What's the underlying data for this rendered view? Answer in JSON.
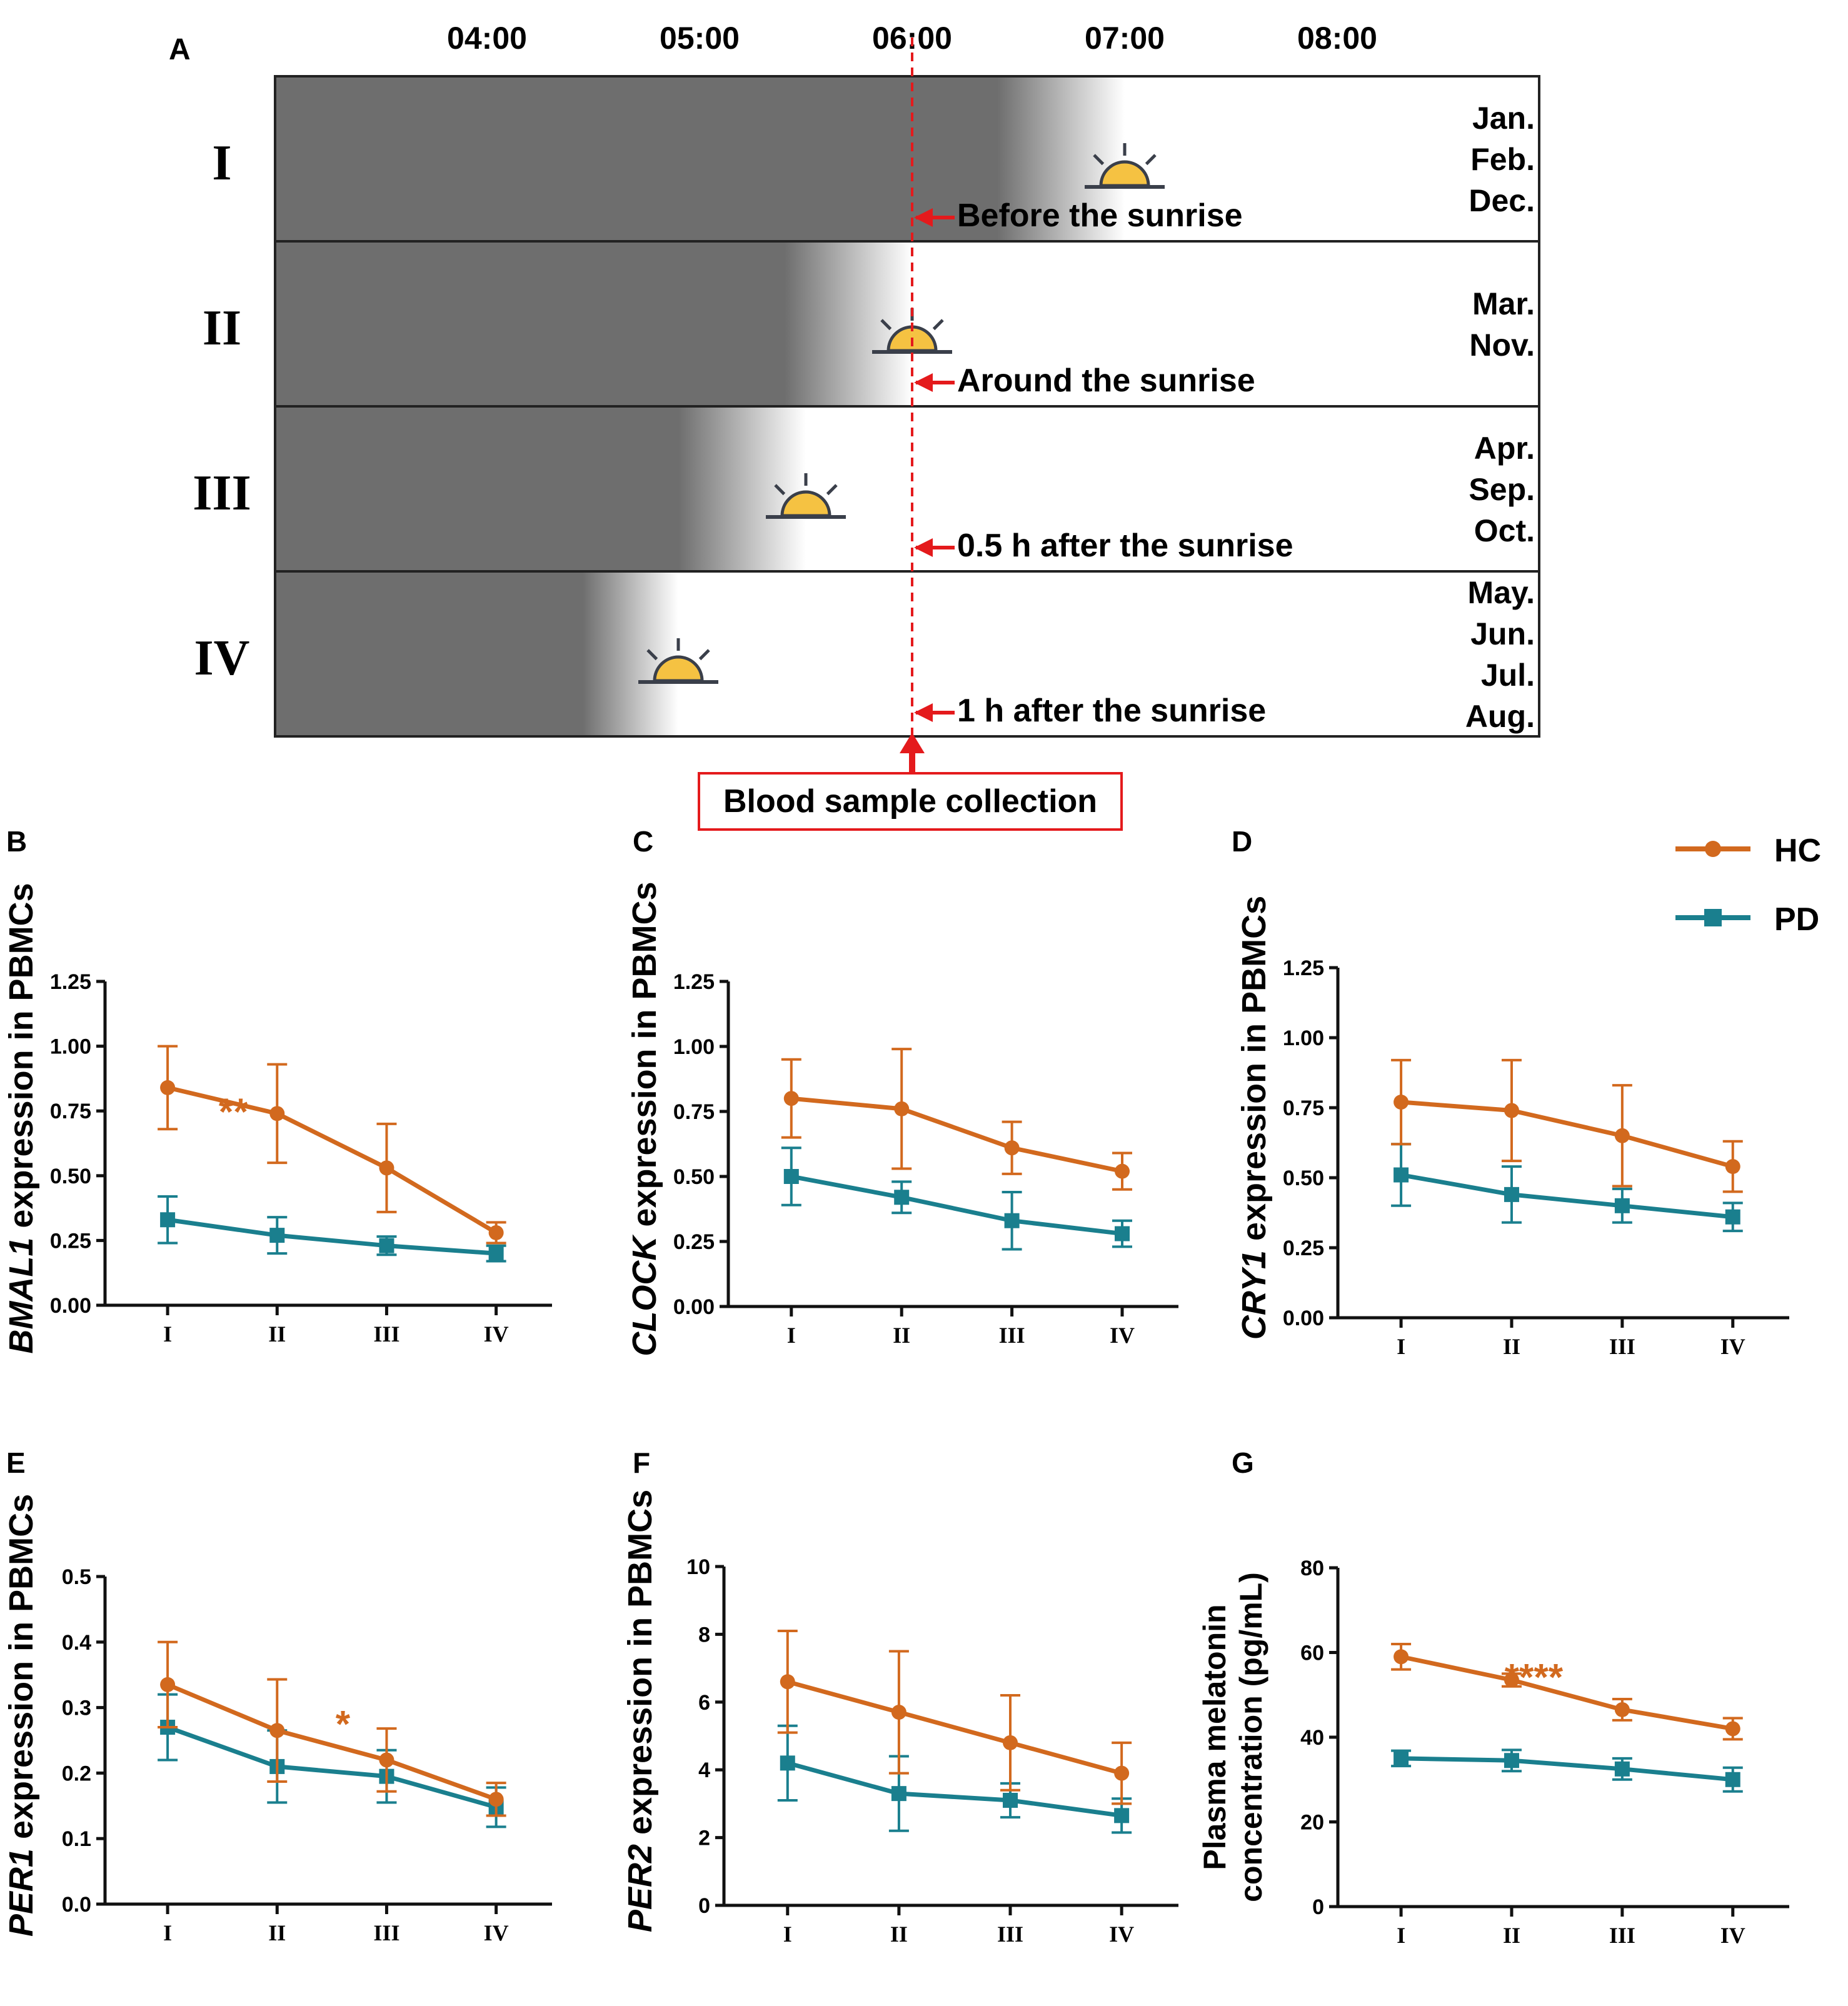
{
  "colors": {
    "hc": "#D2691E",
    "pd": "#1A7F8E",
    "night": "#6E6E6E",
    "accent_red": "#E41A1C",
    "sun_fill": "#F5C242",
    "sun_stroke": "#3A3F4A"
  },
  "panel_a": {
    "label": "A",
    "times": [
      "04:00",
      "05:00",
      "06:00",
      "07:00",
      "08:00"
    ],
    "rows": [
      {
        "roman": "I",
        "months": [
          "Jan.",
          "Feb.",
          "Dec."
        ],
        "note": "Before the sunrise",
        "dark_until_hour": 6.4,
        "sunrise_hour": 7.0
      },
      {
        "roman": "II",
        "months": [
          "Mar.",
          "Nov."
        ],
        "note": "Around the sunrise",
        "dark_until_hour": 5.4,
        "sunrise_hour": 6.0
      },
      {
        "roman": "III",
        "months": [
          "Apr.",
          "Sep.",
          "Oct."
        ],
        "note": "0.5 h after the sunrise",
        "dark_until_hour": 4.9,
        "sunrise_hour": 5.5
      },
      {
        "roman": "IV",
        "months": [
          "May.",
          "Jun.",
          "Jul.",
          "Aug."
        ],
        "note": "1 h after the sunrise",
        "dark_until_hour": 4.45,
        "sunrise_hour": 4.9
      }
    ],
    "collection_hour": 6.0,
    "collection_label": "Blood sample collection"
  },
  "legend": {
    "hc": "HC",
    "pd": "PD"
  },
  "chart_data": [
    {
      "panel": "B",
      "type": "line",
      "ylabel_italic": "BMAL1",
      "ylabel_rest": " expression in PBMCs",
      "categories": [
        "I",
        "II",
        "III",
        "IV"
      ],
      "ylim": [
        0,
        1.25
      ],
      "yticks": [
        "0.00",
        "0.25",
        "0.50",
        "0.75",
        "1.00",
        "1.25"
      ],
      "ytick_values": [
        0,
        0.25,
        0.5,
        0.75,
        1.0,
        1.25
      ],
      "series": [
        {
          "name": "HC",
          "values": [
            0.84,
            0.74,
            0.53,
            0.28
          ],
          "errors": [
            0.16,
            0.19,
            0.17,
            0.04
          ]
        },
        {
          "name": "PD",
          "values": [
            0.33,
            0.27,
            0.23,
            0.2
          ],
          "errors": [
            0.09,
            0.07,
            0.035,
            0.03
          ]
        }
      ],
      "annotation": {
        "text": "**",
        "category_pos": 1.6,
        "value": 0.76
      }
    },
    {
      "panel": "C",
      "type": "line",
      "ylabel_italic": "CLOCK",
      "ylabel_rest": " expression in PBMCs",
      "categories": [
        "I",
        "II",
        "III",
        "IV"
      ],
      "ylim": [
        0,
        1.25
      ],
      "yticks": [
        "0.00",
        "0.25",
        "0.50",
        "0.75",
        "1.00",
        "1.25"
      ],
      "ytick_values": [
        0,
        0.25,
        0.5,
        0.75,
        1.0,
        1.25
      ],
      "series": [
        {
          "name": "HC",
          "values": [
            0.8,
            0.76,
            0.61,
            0.52
          ],
          "errors": [
            0.15,
            0.23,
            0.1,
            0.07
          ]
        },
        {
          "name": "PD",
          "values": [
            0.5,
            0.42,
            0.33,
            0.28
          ],
          "errors": [
            0.11,
            0.06,
            0.11,
            0.05
          ]
        }
      ]
    },
    {
      "panel": "D",
      "type": "line",
      "ylabel_italic": "CRY1",
      "ylabel_rest": " expression in PBMCs",
      "categories": [
        "I",
        "II",
        "III",
        "IV"
      ],
      "ylim": [
        0,
        1.25
      ],
      "yticks": [
        "0.00",
        "0.25",
        "0.50",
        "0.75",
        "1.00",
        "1.25"
      ],
      "ytick_values": [
        0,
        0.25,
        0.5,
        0.75,
        1.0,
        1.25
      ],
      "series": [
        {
          "name": "HC",
          "values": [
            0.77,
            0.74,
            0.65,
            0.54
          ],
          "errors": [
            0.15,
            0.18,
            0.18,
            0.09
          ]
        },
        {
          "name": "PD",
          "values": [
            0.51,
            0.44,
            0.4,
            0.36
          ],
          "errors": [
            0.11,
            0.1,
            0.06,
            0.05
          ]
        }
      ]
    },
    {
      "panel": "E",
      "type": "line",
      "ylabel_italic": "PER1",
      "ylabel_rest": " expression in PBMCs",
      "categories": [
        "I",
        "II",
        "III",
        "IV"
      ],
      "ylim": [
        0,
        0.5
      ],
      "yticks": [
        "0.0",
        "0.1",
        "0.2",
        "0.3",
        "0.4",
        "0.5"
      ],
      "ytick_values": [
        0,
        0.1,
        0.2,
        0.3,
        0.4,
        0.5
      ],
      "series": [
        {
          "name": "HC",
          "values": [
            0.335,
            0.265,
            0.22,
            0.16
          ],
          "errors": [
            0.065,
            0.078,
            0.048,
            0.025
          ]
        },
        {
          "name": "PD",
          "values": [
            0.27,
            0.21,
            0.195,
            0.148
          ],
          "errors": [
            0.05,
            0.055,
            0.04,
            0.03
          ]
        }
      ],
      "annotation": {
        "text": "*",
        "category_pos": 2.6,
        "value": 0.28
      }
    },
    {
      "panel": "F",
      "type": "line",
      "ylabel_italic": "PER2",
      "ylabel_rest": " expression in PBMCs",
      "categories": [
        "I",
        "II",
        "III",
        "IV"
      ],
      "ylim": [
        0,
        10
      ],
      "yticks": [
        "0",
        "2",
        "4",
        "6",
        "8",
        "10"
      ],
      "ytick_values": [
        0,
        2,
        4,
        6,
        8,
        10
      ],
      "series": [
        {
          "name": "HC",
          "values": [
            6.6,
            5.7,
            4.8,
            3.9
          ],
          "errors": [
            1.5,
            1.8,
            1.4,
            0.9
          ]
        },
        {
          "name": "PD",
          "values": [
            4.2,
            3.3,
            3.1,
            2.65
          ],
          "errors": [
            1.1,
            1.1,
            0.5,
            0.5
          ]
        }
      ]
    },
    {
      "panel": "G",
      "type": "line",
      "ylabel_line1": "Plasma melatonin",
      "ylabel_line2": "concentration (pg/mL)",
      "categories": [
        "I",
        "II",
        "III",
        "IV"
      ],
      "ylim": [
        0,
        80
      ],
      "yticks": [
        "0",
        "20",
        "40",
        "60",
        "80"
      ],
      "ytick_values": [
        0,
        20,
        40,
        60,
        80
      ],
      "series": [
        {
          "name": "HC",
          "values": [
            59,
            53.5,
            46.5,
            42
          ],
          "errors": [
            3,
            1.5,
            2.5,
            2.5
          ]
        },
        {
          "name": "PD",
          "values": [
            35,
            34.5,
            32.5,
            30
          ],
          "errors": [
            1.8,
            2.5,
            2.5,
            2.8
          ]
        }
      ],
      "annotation": {
        "text": "****",
        "category_pos": 2.2,
        "value": 55
      }
    }
  ]
}
